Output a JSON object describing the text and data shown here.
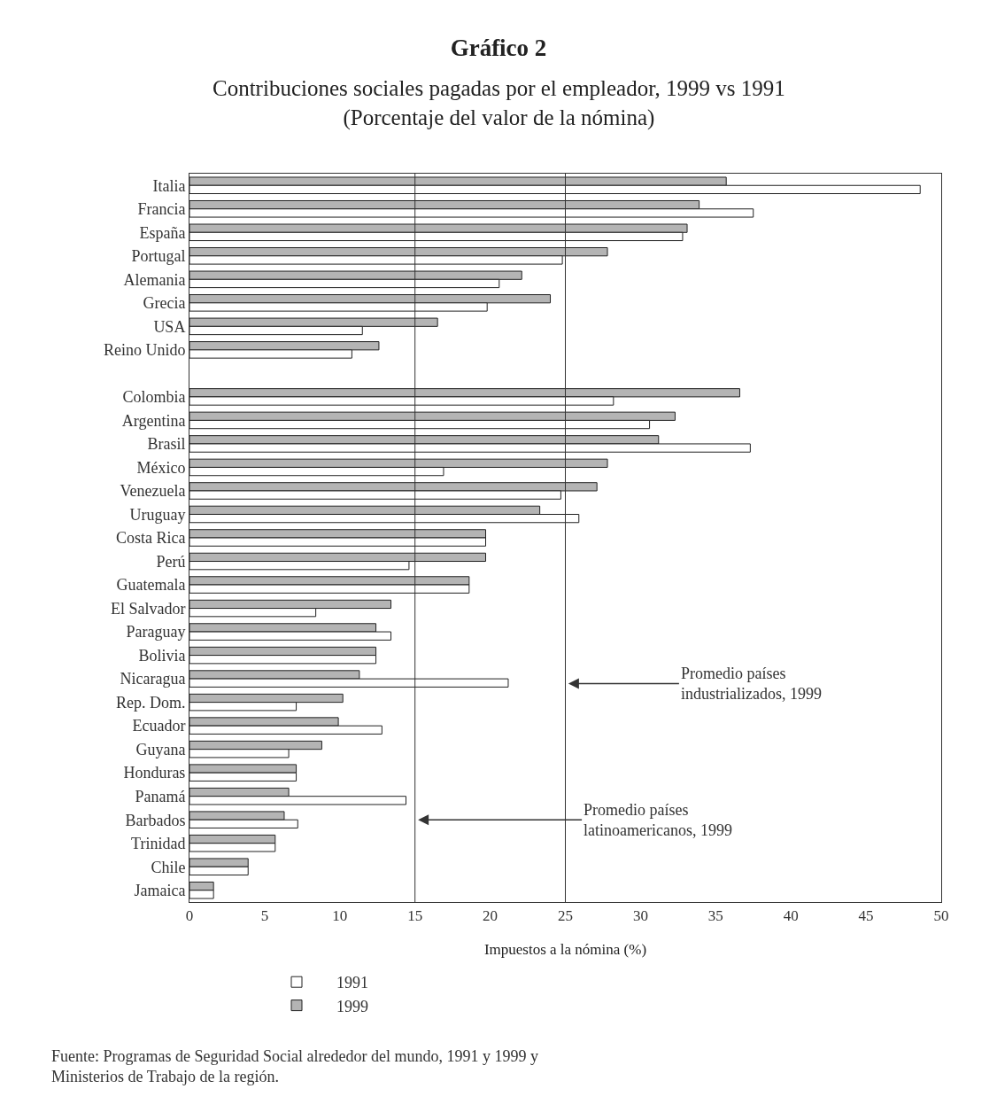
{
  "chart_data": {
    "type": "bar",
    "orientation": "horizontal",
    "title": "Gráfico 2",
    "subtitle": "Contribuciones sociales pagadas por el empleador, 1999 vs 1991\n(Porcentaje del valor de la nómina)",
    "xlabel": "Impuestos a la nómina (%)",
    "categories": [
      "Italia",
      "Francia",
      "España",
      "Portugal",
      "Alemania",
      "Grecia",
      "USA",
      "Reino Unido",
      null,
      "Colombia",
      "Argentina",
      "Brasil",
      "México",
      "Venezuela",
      "Uruguay",
      "Costa Rica",
      "Perú",
      "Guatemala",
      "El Salvador",
      "Paraguay",
      "Bolivia",
      "Nicaragua",
      "Rep. Dom.",
      "Ecuador",
      "Guyana",
      "Honduras",
      "Panamá",
      "Barbados",
      "Trinidad",
      "Chile",
      "Jamaica"
    ],
    "series": [
      {
        "name": "1999",
        "color": "#b4b4b4",
        "values": [
          35.7,
          33.9,
          33.1,
          27.8,
          22.1,
          24.0,
          16.5,
          12.6,
          null,
          36.6,
          32.3,
          31.2,
          27.8,
          27.1,
          23.3,
          19.7,
          19.7,
          18.6,
          13.4,
          12.4,
          12.4,
          11.3,
          10.2,
          9.9,
          8.8,
          7.1,
          6.6,
          6.3,
          5.7,
          3.9,
          1.6
        ]
      },
      {
        "name": "1991",
        "color": "#ffffff",
        "values": [
          48.6,
          37.5,
          32.8,
          24.8,
          20.6,
          19.8,
          11.5,
          10.8,
          null,
          28.2,
          30.6,
          37.3,
          16.9,
          24.7,
          25.9,
          19.7,
          14.6,
          18.6,
          8.4,
          13.4,
          12.4,
          21.2,
          7.1,
          12.8,
          6.6,
          7.1,
          14.4,
          7.2,
          5.7,
          3.9,
          1.6
        ]
      }
    ],
    "xlim": [
      0,
      50
    ],
    "xticks": [
      0,
      5,
      10,
      15,
      20,
      25,
      30,
      35,
      40,
      45,
      50
    ],
    "ref_lines": [
      {
        "axis": "x",
        "value": 25,
        "label": "Promedio países\nindustrializados, 1999",
        "color": "#333333"
      },
      {
        "axis": "x",
        "value": 15,
        "label": "Promedio países\nlatinoamericanos, 1999",
        "color": "#333333"
      }
    ],
    "legend": "bottom",
    "grid": false,
    "annotations": [
      "Fuente: Programas de Seguridad Social alrededor del mundo, 1991 y 1999 y\nMinisterios de Trabajo de la región."
    ]
  }
}
